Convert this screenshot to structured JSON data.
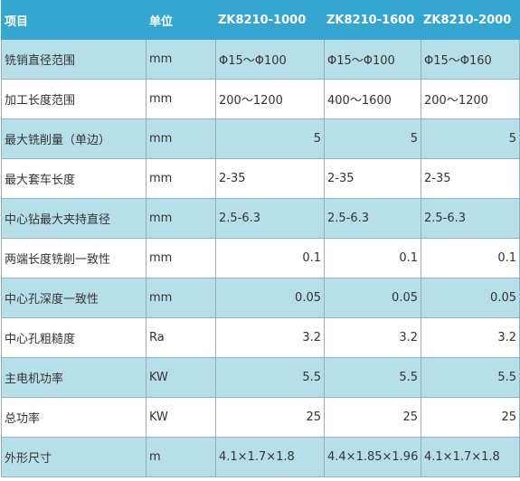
{
  "table": {
    "headers": [
      "项目",
      "单位",
      "ZK8210-1000",
      "ZK8210-1600",
      "ZK8210-2000"
    ],
    "rows": [
      {
        "item": "铣销直径范围",
        "unit": "mm",
        "v1": "Φ15～Φ100",
        "v2": "Φ15～Φ100",
        "v3": "Φ15～Φ160"
      },
      {
        "item": "加工长度范围",
        "unit": "mm",
        "v1": "200～1200",
        "v2": "400～1600",
        "v3": "200～1200"
      },
      {
        "item": "最大铣削量（单边）",
        "unit": "mm",
        "v1": "5",
        "v2": "5",
        "v3": "5"
      },
      {
        "item": "最大套车长度",
        "unit": "mm",
        "v1": "2-35",
        "v2": "2-35",
        "v3": "2-35"
      },
      {
        "item": "中心钻最大夹持直径",
        "unit": "mm",
        "v1": "2.5-6.3",
        "v2": "2.5-6.3",
        "v3": "2.5-6.3"
      },
      {
        "item": "两端长度铣削一致性",
        "unit": "mm",
        "v1": "0.1",
        "v2": "0.1",
        "v3": "0.1"
      },
      {
        "item": "中心孔深度一致性",
        "unit": "mm",
        "v1": "0.05",
        "v2": "0.05",
        "v3": "0.05"
      },
      {
        "item": "中心孔粗糙度",
        "unit": "Ra",
        "v1": "3.2",
        "v2": "3.2",
        "v3": "3.2"
      },
      {
        "item": "主电机功率",
        "unit": "KW",
        "v1": "5.5",
        "v2": "5.5",
        "v3": "5.5"
      },
      {
        "item": "总功率",
        "unit": "KW",
        "v1": "25",
        "v2": "25",
        "v3": "25"
      },
      {
        "item": "外形尺寸",
        "unit": "m",
        "v1": "4.1×1.7×1.8",
        "v2": "4.4×1.85×1.96",
        "v3": "4.1×1.7×1.8"
      }
    ]
  }
}
